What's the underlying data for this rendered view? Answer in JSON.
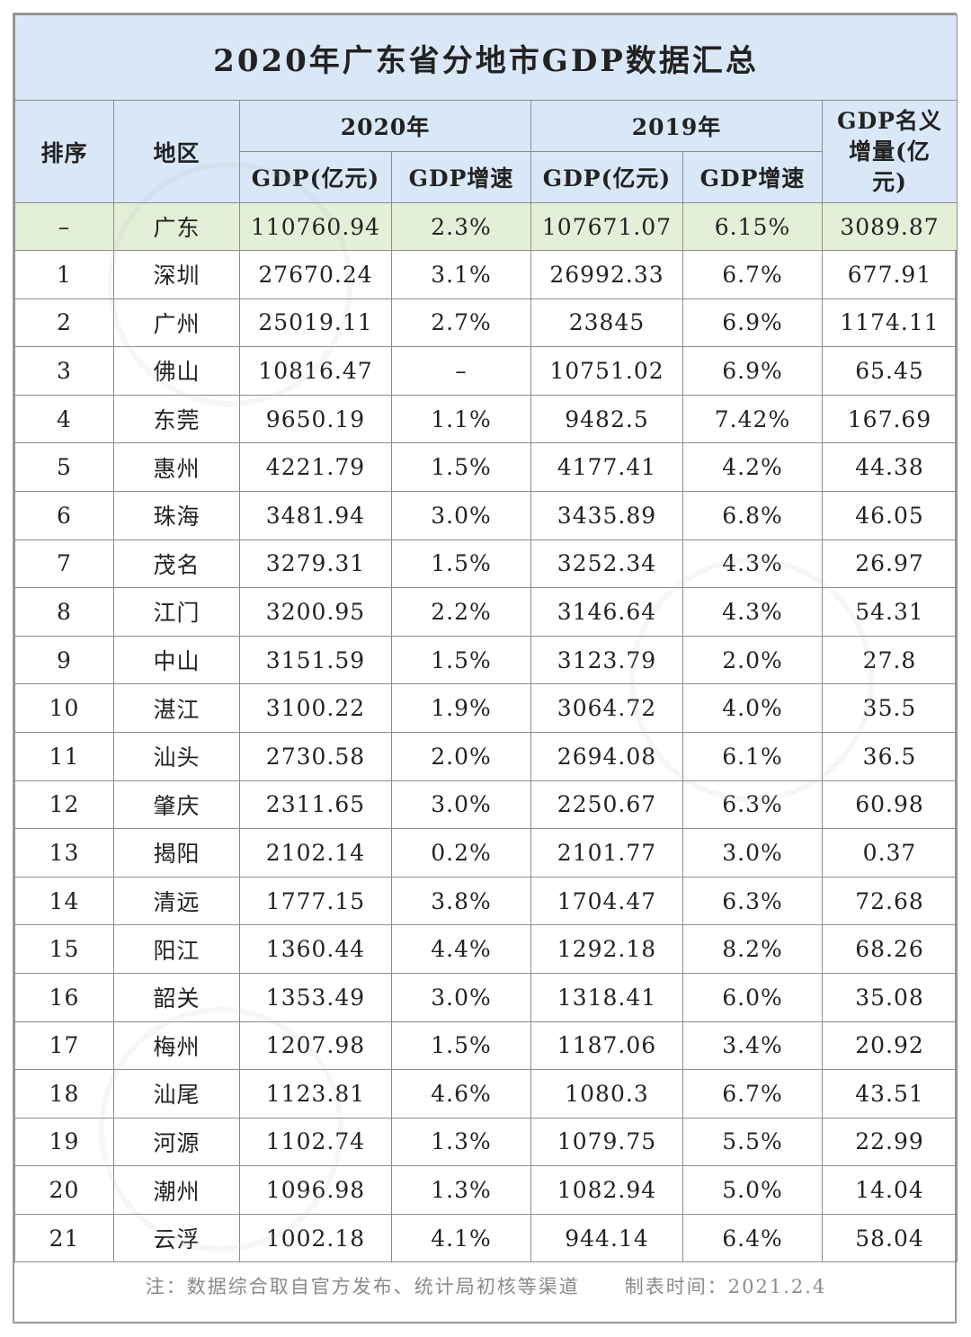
{
  "title": "2020年广东省分地市GDP数据汇总",
  "headers": {
    "rank": "排序",
    "region": "地区",
    "year2020": "2020年",
    "year2019": "2019年",
    "gdp": "GDP(亿元)",
    "growth": "GDP增速",
    "increase": "GDP名义增量(亿元)"
  },
  "province": {
    "rank": "–",
    "region": "广东",
    "gdp2020": "110760.94",
    "growth2020": "2.3%",
    "gdp2019": "107671.07",
    "growth2019": "6.15%",
    "increase": "3089.87"
  },
  "rows": [
    {
      "rank": "1",
      "region": "深圳",
      "gdp2020": "27670.24",
      "growth2020": "3.1%",
      "gdp2019": "26992.33",
      "growth2019": "6.7%",
      "increase": "677.91"
    },
    {
      "rank": "2",
      "region": "广州",
      "gdp2020": "25019.11",
      "growth2020": "2.7%",
      "gdp2019": "23845",
      "growth2019": "6.9%",
      "increase": "1174.11"
    },
    {
      "rank": "3",
      "region": "佛山",
      "gdp2020": "10816.47",
      "growth2020": "–",
      "gdp2019": "10751.02",
      "growth2019": "6.9%",
      "increase": "65.45"
    },
    {
      "rank": "4",
      "region": "东莞",
      "gdp2020": "9650.19",
      "growth2020": "1.1%",
      "gdp2019": "9482.5",
      "growth2019": "7.42%",
      "increase": "167.69"
    },
    {
      "rank": "5",
      "region": "惠州",
      "gdp2020": "4221.79",
      "growth2020": "1.5%",
      "gdp2019": "4177.41",
      "growth2019": "4.2%",
      "increase": "44.38"
    },
    {
      "rank": "6",
      "region": "珠海",
      "gdp2020": "3481.94",
      "growth2020": "3.0%",
      "gdp2019": "3435.89",
      "growth2019": "6.8%",
      "increase": "46.05"
    },
    {
      "rank": "7",
      "region": "茂名",
      "gdp2020": "3279.31",
      "growth2020": "1.5%",
      "gdp2019": "3252.34",
      "growth2019": "4.3%",
      "increase": "26.97"
    },
    {
      "rank": "8",
      "region": "江门",
      "gdp2020": "3200.95",
      "growth2020": "2.2%",
      "gdp2019": "3146.64",
      "growth2019": "4.3%",
      "increase": "54.31"
    },
    {
      "rank": "9",
      "region": "中山",
      "gdp2020": "3151.59",
      "growth2020": "1.5%",
      "gdp2019": "3123.79",
      "growth2019": "2.0%",
      "increase": "27.8"
    },
    {
      "rank": "10",
      "region": "湛江",
      "gdp2020": "3100.22",
      "growth2020": "1.9%",
      "gdp2019": "3064.72",
      "growth2019": "4.0%",
      "increase": "35.5"
    },
    {
      "rank": "11",
      "region": "汕头",
      "gdp2020": "2730.58",
      "growth2020": "2.0%",
      "gdp2019": "2694.08",
      "growth2019": "6.1%",
      "increase": "36.5"
    },
    {
      "rank": "12",
      "region": "肇庆",
      "gdp2020": "2311.65",
      "growth2020": "3.0%",
      "gdp2019": "2250.67",
      "growth2019": "6.3%",
      "increase": "60.98"
    },
    {
      "rank": "13",
      "region": "揭阳",
      "gdp2020": "2102.14",
      "growth2020": "0.2%",
      "gdp2019": "2101.77",
      "growth2019": "3.0%",
      "increase": "0.37"
    },
    {
      "rank": "14",
      "region": "清远",
      "gdp2020": "1777.15",
      "growth2020": "3.8%",
      "gdp2019": "1704.47",
      "growth2019": "6.3%",
      "increase": "72.68"
    },
    {
      "rank": "15",
      "region": "阳江",
      "gdp2020": "1360.44",
      "growth2020": "4.4%",
      "gdp2019": "1292.18",
      "growth2019": "8.2%",
      "increase": "68.26"
    },
    {
      "rank": "16",
      "region": "韶关",
      "gdp2020": "1353.49",
      "growth2020": "3.0%",
      "gdp2019": "1318.41",
      "growth2019": "6.0%",
      "increase": "35.08"
    },
    {
      "rank": "17",
      "region": "梅州",
      "gdp2020": "1207.98",
      "growth2020": "1.5%",
      "gdp2019": "1187.06",
      "growth2019": "3.4%",
      "increase": "20.92"
    },
    {
      "rank": "18",
      "region": "汕尾",
      "gdp2020": "1123.81",
      "growth2020": "4.6%",
      "gdp2019": "1080.3",
      "growth2019": "6.7%",
      "increase": "43.51"
    },
    {
      "rank": "19",
      "region": "河源",
      "gdp2020": "1102.74",
      "growth2020": "1.3%",
      "gdp2019": "1079.75",
      "growth2019": "5.5%",
      "increase": "22.99"
    },
    {
      "rank": "20",
      "region": "潮州",
      "gdp2020": "1096.98",
      "growth2020": "1.3%",
      "gdp2019": "1082.94",
      "growth2019": "5.0%",
      "increase": "14.04"
    },
    {
      "rank": "21",
      "region": "云浮",
      "gdp2020": "1002.18",
      "growth2020": "4.1%",
      "gdp2019": "944.14",
      "growth2019": "6.4%",
      "increase": "58.04"
    }
  ],
  "note": {
    "source": "注：数据综合取自官方发布、统计局初核等渠道",
    "date": "制表时间：2021.2.4"
  },
  "colors": {
    "header_bg": "#d9e7f6",
    "province_bg": "#e4efd8",
    "border": "#8d8d8d"
  }
}
